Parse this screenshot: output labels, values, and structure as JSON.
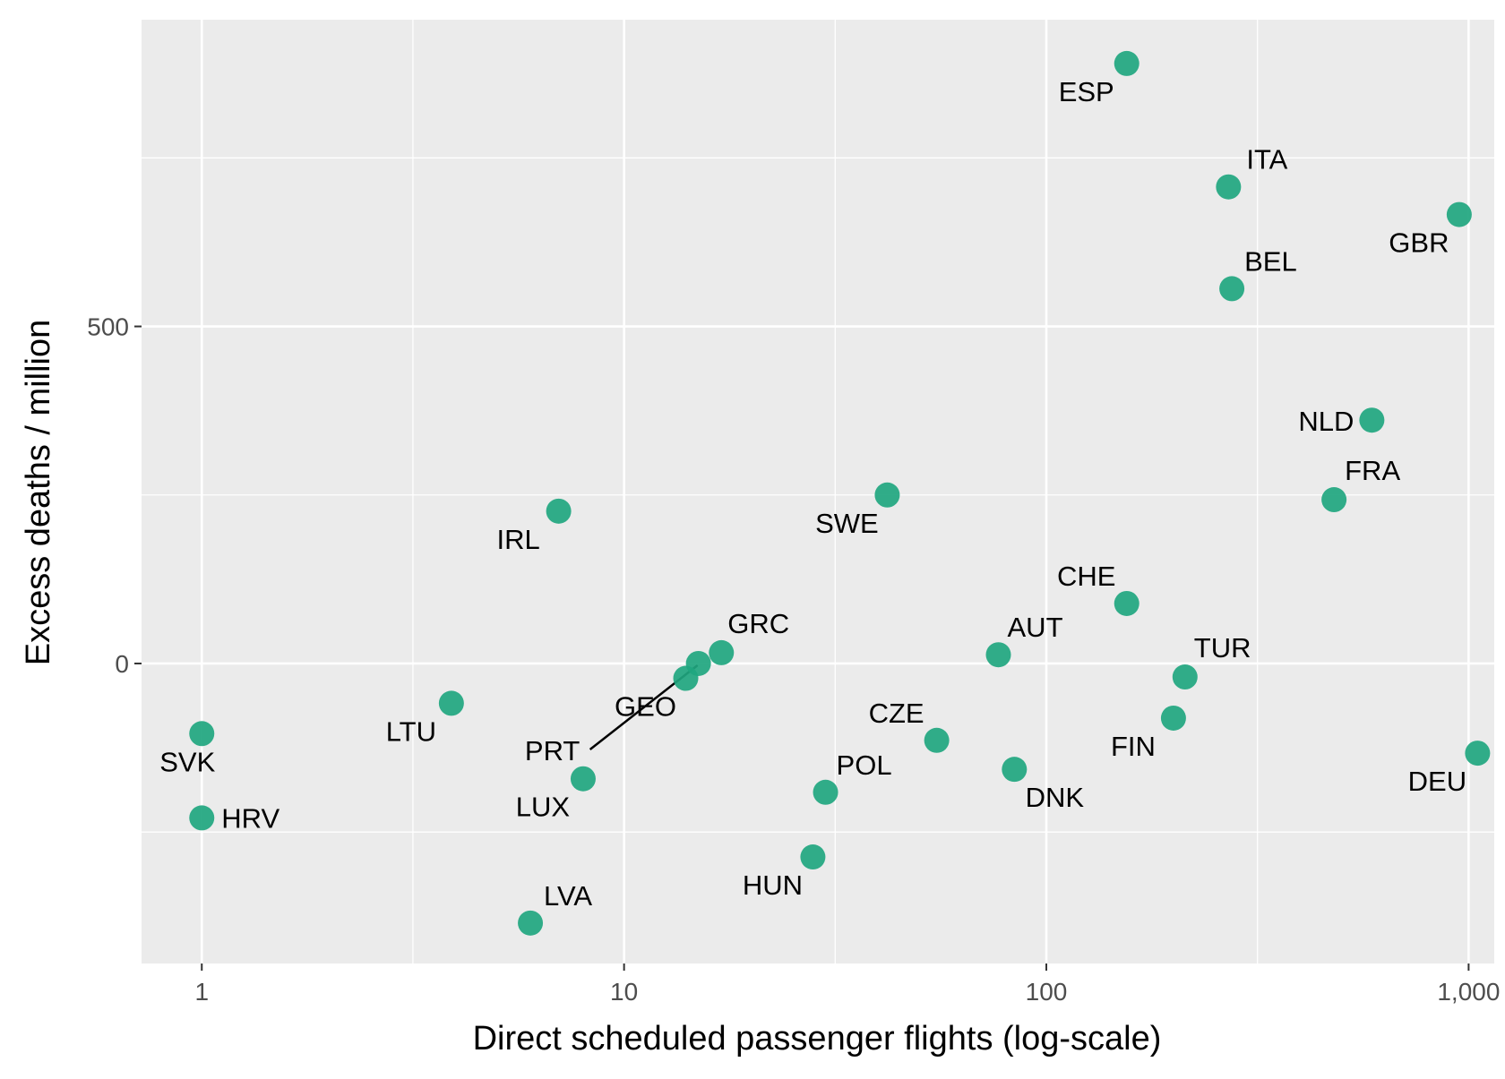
{
  "chart_data": {
    "type": "scatter",
    "xlabel": "Direct scheduled passenger flights (log-scale)",
    "ylabel": "Excess deaths / million",
    "x_scale": "log10",
    "xlim": [
      0.72,
      1150
    ],
    "ylim": [
      -445,
      955
    ],
    "x_ticks": [
      {
        "value": 1,
        "label": "1"
      },
      {
        "value": 10,
        "label": "10"
      },
      {
        "value": 100,
        "label": "100"
      },
      {
        "value": 1000,
        "label": "1,000"
      }
    ],
    "y_ticks": [
      {
        "value": 0,
        "label": "0"
      },
      {
        "value": 500,
        "label": "500"
      }
    ],
    "grid": true,
    "point_color": "#1fa67f",
    "panel_color": "#ebebeb",
    "points": [
      {
        "label": "ESP",
        "x": 155,
        "y": 890
      },
      {
        "label": "ITA",
        "x": 270,
        "y": 707
      },
      {
        "label": "GBR",
        "x": 950,
        "y": 666
      },
      {
        "label": "BEL",
        "x": 275,
        "y": 556
      },
      {
        "label": "NLD",
        "x": 590,
        "y": 361
      },
      {
        "label": "FRA",
        "x": 480,
        "y": 243
      },
      {
        "label": "SWE",
        "x": 42,
        "y": 250
      },
      {
        "label": "IRL",
        "x": 7,
        "y": 226
      },
      {
        "label": "CHE",
        "x": 155,
        "y": 89
      },
      {
        "label": "AUT",
        "x": 77,
        "y": 13
      },
      {
        "label": "TUR",
        "x": 213,
        "y": -20
      },
      {
        "label": "GRC",
        "x": 17,
        "y": 16
      },
      {
        "label": "GEO",
        "x": 14,
        "y": -22
      },
      {
        "label": "PRT",
        "x": 15,
        "y": 0
      },
      {
        "label": "LTU",
        "x": 3.9,
        "y": -59
      },
      {
        "label": "SVK",
        "x": 1,
        "y": -104
      },
      {
        "label": "CZE",
        "x": 55,
        "y": -114
      },
      {
        "label": "FIN",
        "x": 200,
        "y": -81
      },
      {
        "label": "DEU",
        "x": 1050,
        "y": -133
      },
      {
        "label": "DNK",
        "x": 84,
        "y": -157
      },
      {
        "label": "LUX",
        "x": 8,
        "y": -171
      },
      {
        "label": "POL",
        "x": 30,
        "y": -191
      },
      {
        "label": "HRV",
        "x": 1,
        "y": -229
      },
      {
        "label": "HUN",
        "x": 28,
        "y": -287
      },
      {
        "label": "LVA",
        "x": 6,
        "y": -385
      }
    ]
  }
}
